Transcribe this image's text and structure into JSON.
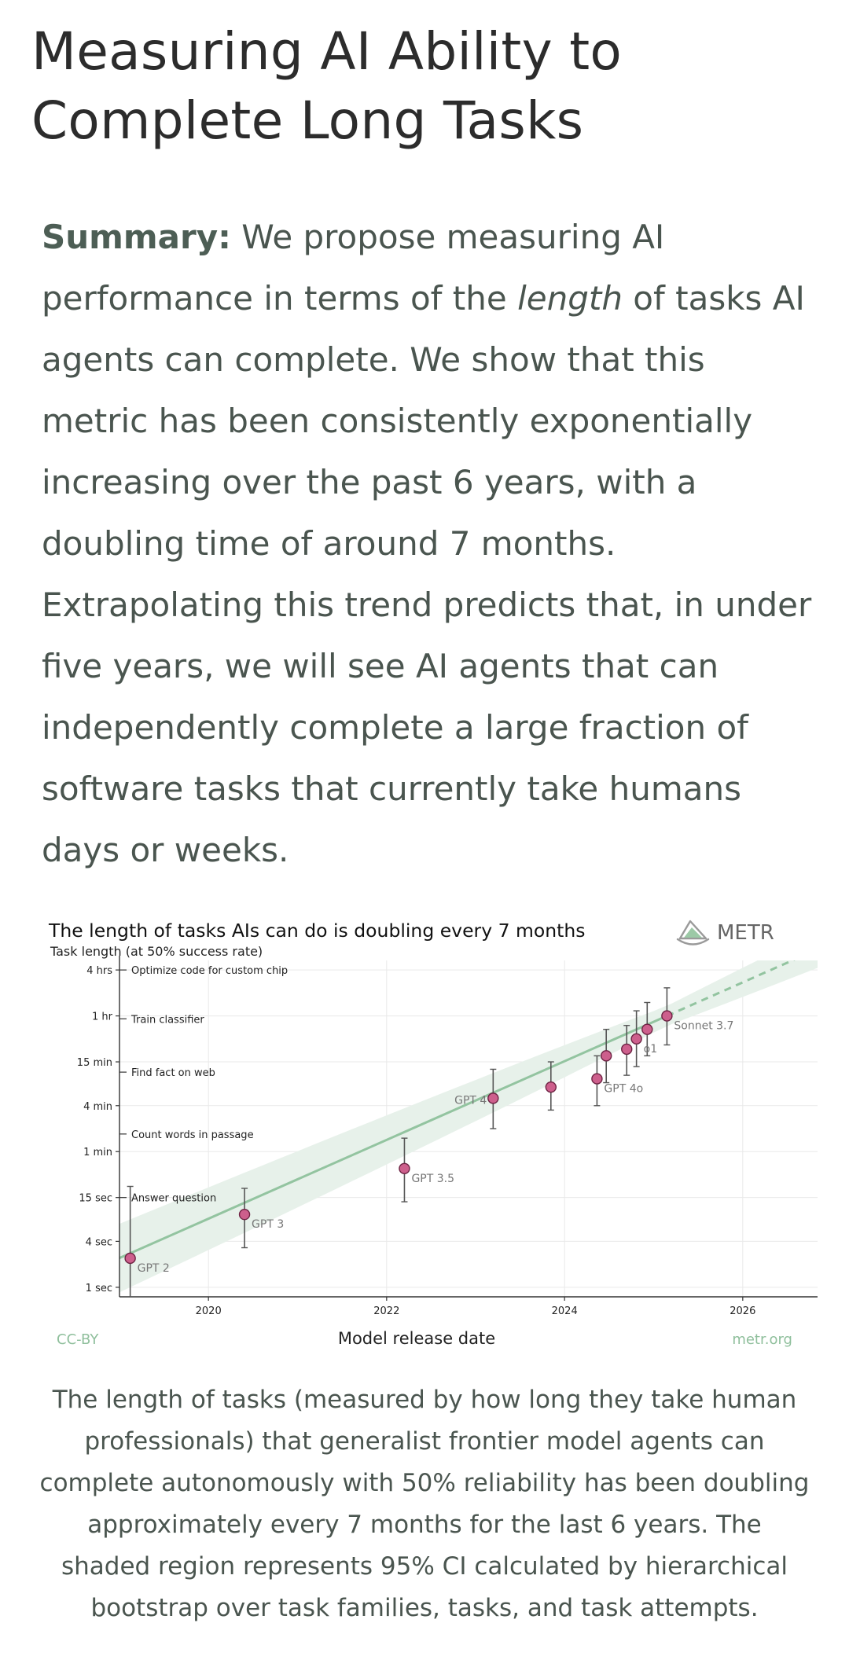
{
  "page": {
    "title_line1": "Measuring AI Ability to",
    "title_line2": "Complete Long Tasks",
    "summary_label": "Summary:",
    "summary_part1": " We propose measuring AI performance in terms of the ",
    "summary_emph": "length",
    "summary_part2": " of tasks AI agents can complete. We show that this metric has been consistently exponentially increasing over the past 6 years, with a doubling time of around 7 months. Extrapolating this trend predicts that, in under five years, we will see AI agents that can independently complete a large fraction of software tasks that currently take humans days or weeks.",
    "caption": "The length of tasks (measured by how long they take human professionals) that generalist frontier model agents can complete autonomously with 50% reliability has been doubling approximately every 7 months for the last 6 years. The shaded region represents 95% CI calculated by hierarchical bootstrap over task families, tasks, and task attempts."
  },
  "chart_data": {
    "type": "scatter",
    "title": "The length of tasks AIs can do is doubling every 7 months",
    "ylabel": "Task length (at 50% success rate)",
    "xlabel": "Model release date",
    "logo_text": "METR",
    "license_text": "CC-BY",
    "site_text": "metr.org",
    "y_scale": "log",
    "x_range": [
      "2019-01-01",
      "2027-01-01"
    ],
    "y_range_minutes": [
      0.0125,
      320
    ],
    "x_ticks": [
      {
        "label": "2020",
        "date": "2020-01-01"
      },
      {
        "label": "2022",
        "date": "2022-01-01"
      },
      {
        "label": "2024",
        "date": "2024-01-01"
      },
      {
        "label": "2026",
        "date": "2026-01-01"
      }
    ],
    "y_ticks": [
      {
        "label": "1 sec",
        "minutes": 0.016667
      },
      {
        "label": "4 sec",
        "minutes": 0.066667
      },
      {
        "label": "15 sec",
        "minutes": 0.25
      },
      {
        "label": "1 min",
        "minutes": 1
      },
      {
        "label": "4 min",
        "minutes": 4
      },
      {
        "label": "15 min",
        "minutes": 15
      },
      {
        "label": "1 hr",
        "minutes": 60
      },
      {
        "label": "4 hrs",
        "minutes": 240
      }
    ],
    "task_examples": [
      {
        "label": "Optimize code for custom chip",
        "minutes": 240
      },
      {
        "label": "Train classifier",
        "minutes": 55
      },
      {
        "label": "Find fact on web",
        "minutes": 11
      },
      {
        "label": "Count words in passage",
        "minutes": 1.7
      },
      {
        "label": "Answer question",
        "minutes": 0.25
      }
    ],
    "points": [
      {
        "label": "GPT 2",
        "date": "2019-02-14",
        "minutes": 0.04,
        "ci": [
          0.004,
          0.35
        ],
        "label_side": "right-below"
      },
      {
        "label": "GPT 3",
        "date": "2020-05-28",
        "minutes": 0.15,
        "ci": [
          0.055,
          0.33
        ],
        "label_side": "right-below"
      },
      {
        "label": "GPT 3.5",
        "date": "2022-03-15",
        "minutes": 0.6,
        "ci": [
          0.22,
          1.5
        ],
        "label_side": "right-below"
      },
      {
        "label": "GPT 4",
        "date": "2023-03-14",
        "minutes": 5,
        "ci": [
          2,
          12
        ],
        "label_side": "left"
      },
      {
        "label": "",
        "date": "2023-11-06",
        "minutes": 7,
        "ci": [
          3.5,
          15
        ],
        "label_side": "none"
      },
      {
        "label": "GPT 4o",
        "date": "2024-05-13",
        "minutes": 9,
        "ci": [
          4,
          18
        ],
        "label_side": "right-below"
      },
      {
        "label": "",
        "date": "2024-06-20",
        "minutes": 18,
        "ci": [
          8,
          40
        ],
        "label_side": "none"
      },
      {
        "label": "",
        "date": "2024-09-12",
        "minutes": 22,
        "ci": [
          10,
          45
        ],
        "label_side": "none"
      },
      {
        "label": "o1",
        "date": "2024-10-22",
        "minutes": 30,
        "ci": [
          13,
          70
        ],
        "label_side": "right-below"
      },
      {
        "label": "",
        "date": "2024-12-05",
        "minutes": 40,
        "ci": [
          18,
          90
        ],
        "label_side": "none"
      },
      {
        "label": "Sonnet 3.7",
        "date": "2025-02-24",
        "minutes": 60,
        "ci": [
          25,
          140
        ],
        "label_side": "right-below"
      }
    ],
    "trend": {
      "doubling_months": 7,
      "solid_from": "2019-01-01",
      "solid_to": "2025-02-24",
      "dashed_to": "2027-01-01"
    },
    "colors": {
      "point_fill": "#cd5f8c",
      "point_stroke": "#6d2343",
      "trend": "#93c4a0",
      "band": "#e7f1ea",
      "grid": "#e9e9e9",
      "logo_accent": "#9cc9a6",
      "footer_text": "#8fbf9c"
    }
  }
}
